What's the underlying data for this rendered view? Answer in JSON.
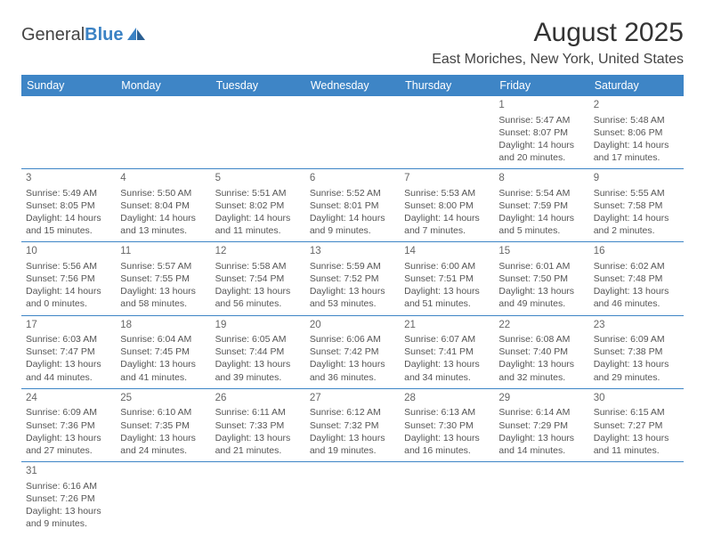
{
  "logo": {
    "part1": "General",
    "part2": "Blue"
  },
  "title": "August 2025",
  "location": "East Moriches, New York, United States",
  "colors": {
    "header_bg": "#3e85c6",
    "header_text": "#ffffff",
    "rule": "#3e85c6"
  },
  "dayHeaders": [
    "Sunday",
    "Monday",
    "Tuesday",
    "Wednesday",
    "Thursday",
    "Friday",
    "Saturday"
  ],
  "startWeekday": 5,
  "daysInMonth": 31,
  "days": {
    "1": {
      "sunrise": "5:47 AM",
      "sunset": "8:07 PM",
      "daylight": "14 hours and 20 minutes."
    },
    "2": {
      "sunrise": "5:48 AM",
      "sunset": "8:06 PM",
      "daylight": "14 hours and 17 minutes."
    },
    "3": {
      "sunrise": "5:49 AM",
      "sunset": "8:05 PM",
      "daylight": "14 hours and 15 minutes."
    },
    "4": {
      "sunrise": "5:50 AM",
      "sunset": "8:04 PM",
      "daylight": "14 hours and 13 minutes."
    },
    "5": {
      "sunrise": "5:51 AM",
      "sunset": "8:02 PM",
      "daylight": "14 hours and 11 minutes."
    },
    "6": {
      "sunrise": "5:52 AM",
      "sunset": "8:01 PM",
      "daylight": "14 hours and 9 minutes."
    },
    "7": {
      "sunrise": "5:53 AM",
      "sunset": "8:00 PM",
      "daylight": "14 hours and 7 minutes."
    },
    "8": {
      "sunrise": "5:54 AM",
      "sunset": "7:59 PM",
      "daylight": "14 hours and 5 minutes."
    },
    "9": {
      "sunrise": "5:55 AM",
      "sunset": "7:58 PM",
      "daylight": "14 hours and 2 minutes."
    },
    "10": {
      "sunrise": "5:56 AM",
      "sunset": "7:56 PM",
      "daylight": "14 hours and 0 minutes."
    },
    "11": {
      "sunrise": "5:57 AM",
      "sunset": "7:55 PM",
      "daylight": "13 hours and 58 minutes."
    },
    "12": {
      "sunrise": "5:58 AM",
      "sunset": "7:54 PM",
      "daylight": "13 hours and 56 minutes."
    },
    "13": {
      "sunrise": "5:59 AM",
      "sunset": "7:52 PM",
      "daylight": "13 hours and 53 minutes."
    },
    "14": {
      "sunrise": "6:00 AM",
      "sunset": "7:51 PM",
      "daylight": "13 hours and 51 minutes."
    },
    "15": {
      "sunrise": "6:01 AM",
      "sunset": "7:50 PM",
      "daylight": "13 hours and 49 minutes."
    },
    "16": {
      "sunrise": "6:02 AM",
      "sunset": "7:48 PM",
      "daylight": "13 hours and 46 minutes."
    },
    "17": {
      "sunrise": "6:03 AM",
      "sunset": "7:47 PM",
      "daylight": "13 hours and 44 minutes."
    },
    "18": {
      "sunrise": "6:04 AM",
      "sunset": "7:45 PM",
      "daylight": "13 hours and 41 minutes."
    },
    "19": {
      "sunrise": "6:05 AM",
      "sunset": "7:44 PM",
      "daylight": "13 hours and 39 minutes."
    },
    "20": {
      "sunrise": "6:06 AM",
      "sunset": "7:42 PM",
      "daylight": "13 hours and 36 minutes."
    },
    "21": {
      "sunrise": "6:07 AM",
      "sunset": "7:41 PM",
      "daylight": "13 hours and 34 minutes."
    },
    "22": {
      "sunrise": "6:08 AM",
      "sunset": "7:40 PM",
      "daylight": "13 hours and 32 minutes."
    },
    "23": {
      "sunrise": "6:09 AM",
      "sunset": "7:38 PM",
      "daylight": "13 hours and 29 minutes."
    },
    "24": {
      "sunrise": "6:09 AM",
      "sunset": "7:36 PM",
      "daylight": "13 hours and 27 minutes."
    },
    "25": {
      "sunrise": "6:10 AM",
      "sunset": "7:35 PM",
      "daylight": "13 hours and 24 minutes."
    },
    "26": {
      "sunrise": "6:11 AM",
      "sunset": "7:33 PM",
      "daylight": "13 hours and 21 minutes."
    },
    "27": {
      "sunrise": "6:12 AM",
      "sunset": "7:32 PM",
      "daylight": "13 hours and 19 minutes."
    },
    "28": {
      "sunrise": "6:13 AM",
      "sunset": "7:30 PM",
      "daylight": "13 hours and 16 minutes."
    },
    "29": {
      "sunrise": "6:14 AM",
      "sunset": "7:29 PM",
      "daylight": "13 hours and 14 minutes."
    },
    "30": {
      "sunrise": "6:15 AM",
      "sunset": "7:27 PM",
      "daylight": "13 hours and 11 minutes."
    },
    "31": {
      "sunrise": "6:16 AM",
      "sunset": "7:26 PM",
      "daylight": "13 hours and 9 minutes."
    }
  },
  "labels": {
    "sunrise": "Sunrise:",
    "sunset": "Sunset:",
    "daylight": "Daylight:"
  }
}
